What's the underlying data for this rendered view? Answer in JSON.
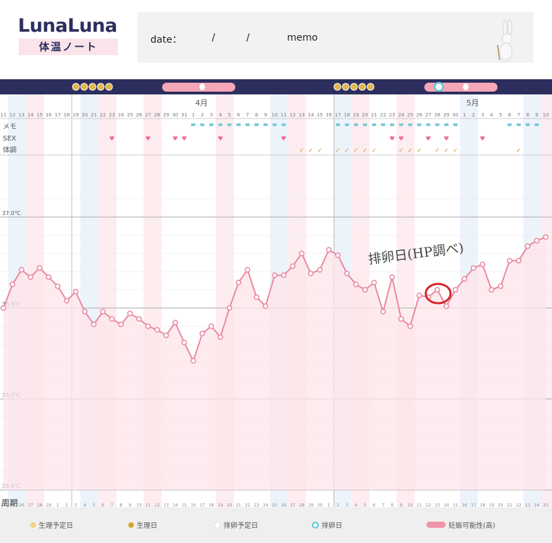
{
  "app": {
    "logo": "LunaLuna",
    "logo_subtitle": "体温ノート"
  },
  "header": {
    "date_label": "date：",
    "slash1": "/",
    "slash2": "/",
    "memo_label": "memo"
  },
  "chart_rows": {
    "memo": "メモ",
    "sex": "SEX",
    "condition": "体調",
    "cycle": "周期"
  },
  "months": {
    "april": "4月",
    "may": "5月"
  },
  "annotation": "排卵日(HP調べ)",
  "legend": {
    "period_predicted": "生理予定日",
    "period": "生理日",
    "ovulation_predicted": "排卵予定日",
    "ovulation": "排卵日",
    "fertility_high": "妊娠可能性(高)"
  },
  "colors": {
    "line": "#e8889e",
    "fill": "#fde4e9",
    "navy": "#2c2e5e",
    "ring": "#d9232c"
  },
  "chart_data": {
    "type": "line",
    "unit": "℃",
    "y_ticks": [
      "37.0℃",
      "36.5℃",
      "36.0℃",
      "35.5℃"
    ],
    "ylim": [
      35.5,
      37.0
    ],
    "date_labels": [
      "11",
      "12",
      "13",
      "14",
      "15",
      "16",
      "17",
      "18",
      "19",
      "20",
      "21",
      "22",
      "23",
      "24",
      "25",
      "26",
      "27",
      "28",
      "29",
      "30",
      "31",
      "1",
      "2",
      "3",
      "4",
      "5",
      "6",
      "7",
      "8",
      "9",
      "10",
      "11",
      "12",
      "13",
      "14",
      "15",
      "16",
      "17",
      "18",
      "19",
      "20",
      "21",
      "22",
      "23",
      "24",
      "25",
      "26",
      "27",
      "28",
      "29",
      "30",
      "1",
      "2",
      "3",
      "4",
      "5",
      "6",
      "7",
      "8",
      "9",
      "10"
    ],
    "cycle_labels": [
      "24",
      "25",
      "26",
      "27",
      "28",
      "29",
      "1",
      "2",
      "3",
      "4",
      "5",
      "6",
      "7",
      "8",
      "9",
      "10",
      "11",
      "12",
      "13",
      "14",
      "15",
      "16",
      "17",
      "18",
      "19",
      "20",
      "21",
      "22",
      "23",
      "24",
      "25",
      "26",
      "27",
      "28",
      "29",
      "30",
      "1",
      "2",
      "3",
      "4",
      "5",
      "6",
      "7",
      "8",
      "9",
      "10",
      "11",
      "12",
      "13",
      "14",
      "15",
      "16",
      "17",
      "18",
      "19",
      "20",
      "21",
      "22",
      "23",
      "24",
      "25"
    ],
    "values": [
      36.5,
      36.63,
      36.71,
      36.67,
      36.72,
      36.67,
      36.62,
      36.54,
      36.59,
      36.48,
      36.41,
      36.48,
      36.44,
      36.41,
      36.47,
      36.44,
      36.4,
      36.38,
      36.35,
      36.42,
      36.31,
      36.21,
      36.36,
      36.4,
      36.34,
      36.5,
      36.64,
      36.71,
      36.56,
      36.51,
      36.68,
      36.68,
      36.73,
      36.8,
      36.69,
      36.71,
      36.82,
      36.79,
      36.69,
      36.63,
      36.6,
      36.64,
      36.48,
      36.67,
      36.44,
      36.4,
      36.57,
      36.56,
      36.6,
      36.51,
      36.6,
      36.66,
      36.72,
      36.74,
      36.6,
      36.62,
      36.76,
      36.76,
      36.84,
      36.87,
      36.89
    ],
    "series": [
      {
        "name": "体温"
      }
    ]
  }
}
